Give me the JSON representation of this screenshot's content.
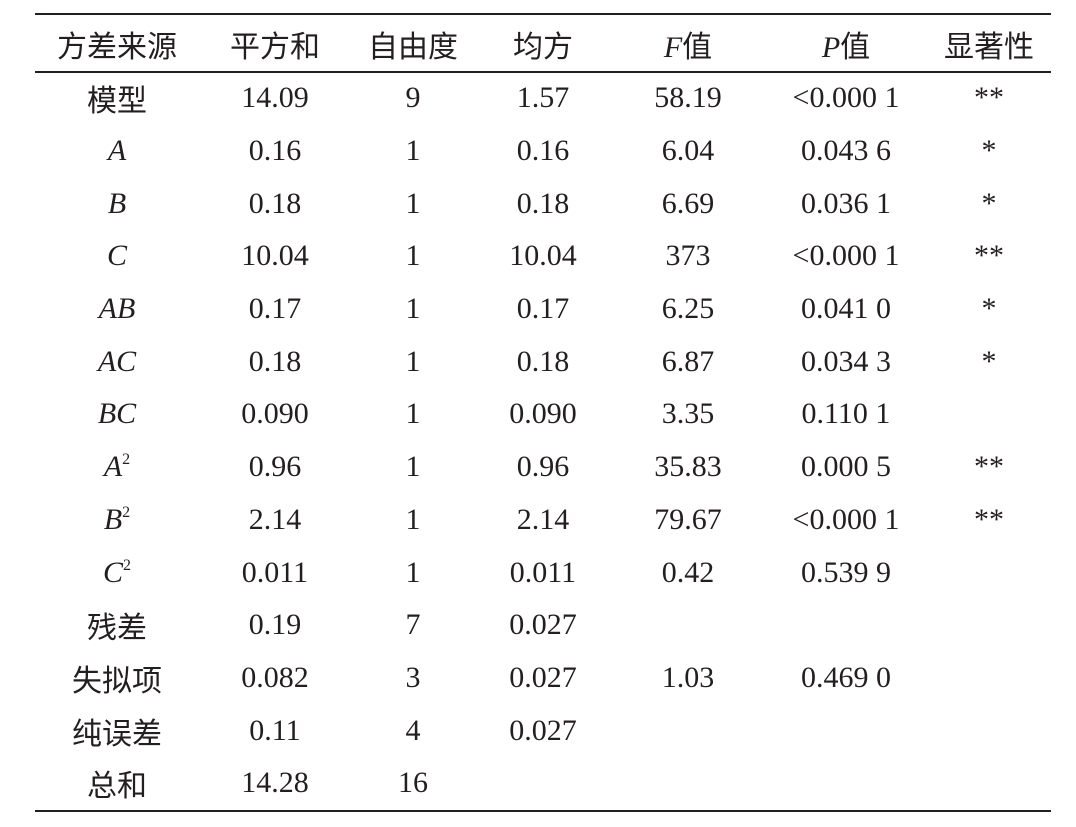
{
  "table": {
    "headers": [
      "方差来源",
      "平方和",
      "自由度",
      "均方",
      "F值",
      "P值",
      "显著性"
    ],
    "rows": [
      {
        "source": "模型",
        "sup": "",
        "ss": "14.09",
        "df": "9",
        "ms": "1.57",
        "f": "58.19",
        "p": "<0.000 1",
        "sig": "**"
      },
      {
        "source": "A",
        "sup": "",
        "ss": "0.16",
        "df": "1",
        "ms": "0.16",
        "f": "6.04",
        "p": "0.043 6",
        "sig": "*"
      },
      {
        "source": "B",
        "sup": "",
        "ss": "0.18",
        "df": "1",
        "ms": "0.18",
        "f": "6.69",
        "p": "0.036 1",
        "sig": "*"
      },
      {
        "source": "C",
        "sup": "",
        "ss": "10.04",
        "df": "1",
        "ms": "10.04",
        "f": "373",
        "p": "<0.000 1",
        "sig": "**"
      },
      {
        "source": "AB",
        "sup": "",
        "ss": "0.17",
        "df": "1",
        "ms": "0.17",
        "f": "6.25",
        "p": "0.041 0",
        "sig": "*"
      },
      {
        "source": "AC",
        "sup": "",
        "ss": "0.18",
        "df": "1",
        "ms": "0.18",
        "f": "6.87",
        "p": "0.034 3",
        "sig": "*"
      },
      {
        "source": "BC",
        "sup": "",
        "ss": "0.090",
        "df": "1",
        "ms": "0.090",
        "f": "3.35",
        "p": "0.110 1",
        "sig": ""
      },
      {
        "source": "A",
        "sup": "2",
        "ss": "0.96",
        "df": "1",
        "ms": "0.96",
        "f": "35.83",
        "p": "0.000 5",
        "sig": "**"
      },
      {
        "source": "B",
        "sup": "2",
        "ss": "2.14",
        "df": "1",
        "ms": "2.14",
        "f": "79.67",
        "p": "<0.000 1",
        "sig": "**"
      },
      {
        "source": "C",
        "sup": "2",
        "ss": "0.011",
        "df": "1",
        "ms": "0.011",
        "f": "0.42",
        "p": "0.539 9",
        "sig": ""
      },
      {
        "source": "残差",
        "sup": "",
        "ss": "0.19",
        "df": "7",
        "ms": "0.027",
        "f": "",
        "p": "",
        "sig": ""
      },
      {
        "source": "失拟项",
        "sup": "",
        "ss": "0.082",
        "df": "3",
        "ms": "0.027",
        "f": "1.03",
        "p": "0.469 0",
        "sig": ""
      },
      {
        "source": "纯误差",
        "sup": "",
        "ss": "0.11",
        "df": "4",
        "ms": "0.027",
        "f": "",
        "p": "",
        "sig": ""
      },
      {
        "source": "总和",
        "sup": "",
        "ss": "14.28",
        "df": "16",
        "ms": "",
        "f": "",
        "p": "",
        "sig": ""
      }
    ]
  }
}
